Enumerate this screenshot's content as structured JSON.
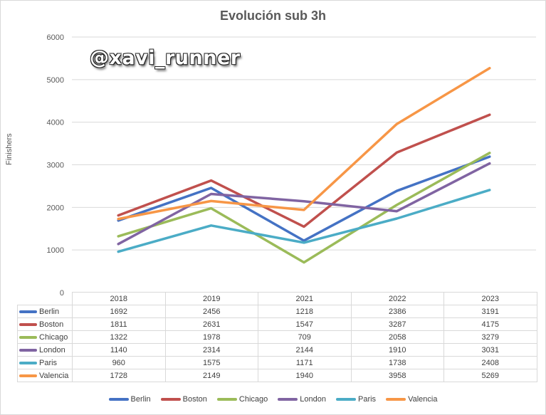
{
  "chart_data": {
    "type": "line",
    "title": "Evolución  sub 3h",
    "ylabel": "Finishers",
    "xlabel": "",
    "categories": [
      "2018",
      "2019",
      "2021",
      "2022",
      "2023"
    ],
    "ylim": [
      0,
      6000
    ],
    "yticks": [
      "0",
      "1000",
      "2000",
      "3000",
      "4000",
      "5000",
      "6000"
    ],
    "ytick_values": [
      0,
      1000,
      2000,
      3000,
      4000,
      5000,
      6000
    ],
    "grid": true,
    "legend_position": "bottom",
    "data_table": true,
    "series": [
      {
        "name": "Berlin",
        "color": "#4472c4",
        "values": [
          1692,
          2456,
          1218,
          2386,
          3191
        ]
      },
      {
        "name": "Boston",
        "color": "#c0504d",
        "values": [
          1811,
          2631,
          1547,
          3287,
          4175
        ]
      },
      {
        "name": "Chicago",
        "color": "#9bbb59",
        "values": [
          1322,
          1978,
          709,
          2058,
          3279
        ]
      },
      {
        "name": "London",
        "color": "#8064a2",
        "values": [
          1140,
          2314,
          2144,
          1910,
          3031
        ]
      },
      {
        "name": "Paris",
        "color": "#4bacc6",
        "values": [
          960,
          1575,
          1171,
          1738,
          2408
        ]
      },
      {
        "name": "Valencia",
        "color": "#f79646",
        "values": [
          1728,
          2149,
          1940,
          3958,
          5269
        ]
      }
    ]
  },
  "watermark": "@xavi_runner"
}
